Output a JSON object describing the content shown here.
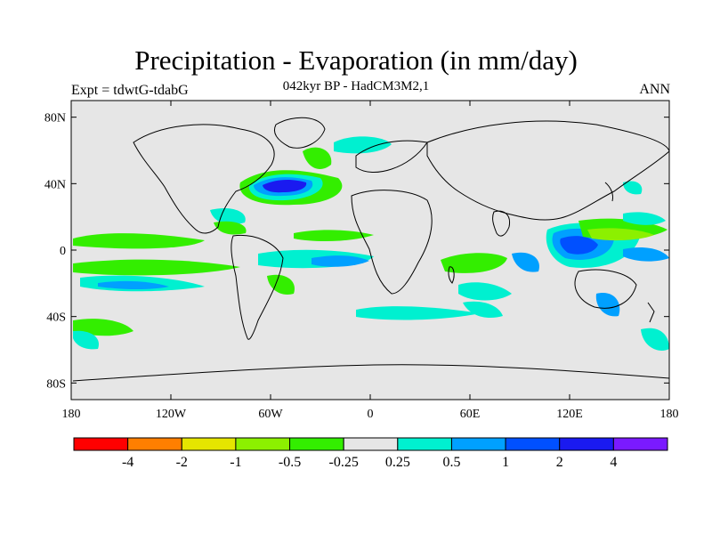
{
  "title": "Precipitation - Evaporation (in mm/day)",
  "subtitle": "042kyr BP - HadCM3M2,1",
  "experiment": "Expt = tdwtG-tdabG",
  "season": "ANN",
  "lat_ticks": [
    "80N",
    "40N",
    "0",
    "40S",
    "80S"
  ],
  "lon_ticks": [
    "180",
    "120W",
    "60W",
    "0",
    "60E",
    "120E",
    "180"
  ],
  "colorbar": {
    "colors": [
      "#ff0000",
      "#ff7f00",
      "#e5e500",
      "#8cf000",
      "#33ee00",
      "#e6e6e6",
      "#00f0d0",
      "#00a0ff",
      "#0050ff",
      "#1a1af0",
      "#7a1aff"
    ],
    "labels": [
      "-4",
      "-2",
      "-1",
      "-0.5",
      "-0.25",
      "0.25",
      "0.5",
      "1",
      "2",
      "4"
    ]
  },
  "colors": {
    "land_background": "#e6e6e6",
    "coastline": "#000000"
  }
}
